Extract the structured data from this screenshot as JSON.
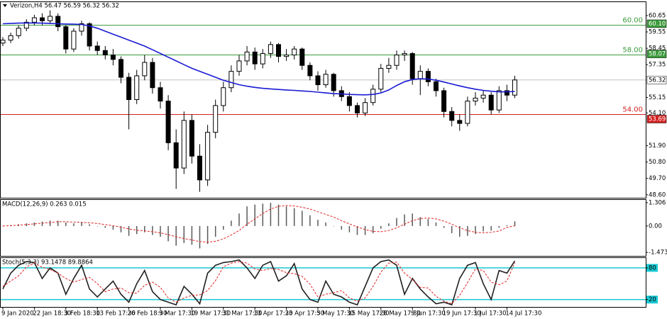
{
  "chart_data": [
    {
      "type": "candlestick",
      "title": "Verizon,H4 56.47 56.59 56.32 56.32",
      "categories": [
        "9 Jan 2020",
        null,
        null,
        null,
        "22 Jan 18:30",
        null,
        null,
        null,
        "3 Feb 18:30",
        null,
        null,
        null,
        "13 Feb 17:30",
        null,
        null,
        null,
        "26 Feb 18:30",
        null,
        null,
        null,
        "9 Mar 17:30",
        null,
        null,
        null,
        "19 Mar 17:30",
        null,
        null,
        null,
        "31 Mar 17:30",
        null,
        null,
        null,
        "13 Apr 17:30",
        null,
        null,
        null,
        "23 Apr 17:30",
        null,
        null,
        null,
        "5 May 17:30",
        null,
        null,
        null,
        "15 May 17:30",
        null,
        null,
        null,
        "28 May 17:30",
        null,
        null,
        null,
        "9 Jun 17:30",
        null,
        null,
        null,
        "19 Jun 17:30",
        null,
        null,
        null,
        "1 Jul 17:30",
        null,
        null,
        null,
        "14 Jul 17:30",
        null
      ],
      "open": [
        58.8,
        59.0,
        59.3,
        59.8,
        60.2,
        60.5,
        60.3,
        60.6,
        59.9,
        58.4,
        59.6,
        60.1,
        58.6,
        58.3,
        58.0,
        57.7,
        56.5,
        55.0,
        56.6,
        57.5,
        55.8,
        54.9,
        52.1,
        50.4,
        53.6,
        51.2,
        49.6,
        52.8,
        54.6,
        55.8,
        56.9,
        57.6,
        58.2,
        57.4,
        58.1,
        58.7,
        57.9,
        58.0,
        58.4,
        57.3,
        56.6,
        56.0,
        56.7,
        55.6,
        55.2,
        54.6,
        54.1,
        54.8,
        55.7,
        57.1,
        57.3,
        58.0,
        58.1,
        56.4,
        56.9,
        56.2,
        55.6,
        54.2,
        53.6,
        53.4,
        54.9,
        55.1,
        55.3,
        54.3,
        55.6,
        55.3
      ],
      "high": [
        59.2,
        59.5,
        60.0,
        60.4,
        60.7,
        60.8,
        61.0,
        60.8,
        60.0,
        59.8,
        60.3,
        60.2,
        58.9,
        58.6,
        58.4,
        57.9,
        56.8,
        57.0,
        58.0,
        57.8,
        56.2,
        55.3,
        53.0,
        54.2,
        54.0,
        52.0,
        53.3,
        55.0,
        56.2,
        57.3,
        58.0,
        58.6,
        58.5,
        58.4,
        58.9,
        58.8,
        58.4,
        58.6,
        58.5,
        57.5,
        56.9,
        57.0,
        56.8,
        55.9,
        55.5,
        54.8,
        55.1,
        56.0,
        57.4,
        57.8,
        58.3,
        58.3,
        58.2,
        57.3,
        57.1,
        56.4,
        55.8,
        54.5,
        54.0,
        55.2,
        55.5,
        55.6,
        55.5,
        55.9,
        56.0,
        56.6
      ],
      "low": [
        58.6,
        58.8,
        59.1,
        59.6,
        60.0,
        60.0,
        60.1,
        59.6,
        58.1,
        58.2,
        59.3,
        58.3,
        58.0,
        57.7,
        57.3,
        56.1,
        53.0,
        54.7,
        56.3,
        55.4,
        54.4,
        51.6,
        49.0,
        50.0,
        50.7,
        48.8,
        49.2,
        52.4,
        54.2,
        55.5,
        56.6,
        57.3,
        57.0,
        57.1,
        57.8,
        57.5,
        57.6,
        57.7,
        57.0,
        56.3,
        55.6,
        55.8,
        55.2,
        54.9,
        54.2,
        53.8,
        53.9,
        54.6,
        55.5,
        56.8,
        57.0,
        57.6,
        56.0,
        55.3,
        55.9,
        55.2,
        53.8,
        53.2,
        52.9,
        53.2,
        54.6,
        54.8,
        54.0,
        54.1,
        54.9,
        55.1
      ],
      "close": [
        59.0,
        59.3,
        59.8,
        60.2,
        60.5,
        60.3,
        60.6,
        59.9,
        58.4,
        59.6,
        60.1,
        58.6,
        58.3,
        58.0,
        57.7,
        56.5,
        55.0,
        56.6,
        57.5,
        55.8,
        54.9,
        52.1,
        50.4,
        53.6,
        51.2,
        49.6,
        52.8,
        54.6,
        55.8,
        56.9,
        57.6,
        58.2,
        57.4,
        58.1,
        58.7,
        57.9,
        58.0,
        58.4,
        57.3,
        56.6,
        56.0,
        56.7,
        55.6,
        55.2,
        54.6,
        54.1,
        54.8,
        55.7,
        57.1,
        57.3,
        58.0,
        58.1,
        56.4,
        56.9,
        56.2,
        55.6,
        54.2,
        53.6,
        53.4,
        54.9,
        55.1,
        55.3,
        54.3,
        55.6,
        55.3,
        56.32
      ],
      "candle_color": "#000000",
      "ma": {
        "color": "#1a1ad4",
        "values": [
          60.1,
          60.12,
          60.14,
          60.15,
          60.15,
          60.14,
          60.12,
          60.1,
          60.08,
          60.07,
          60.05,
          59.95,
          59.8,
          59.6,
          59.4,
          59.2,
          59.0,
          58.8,
          58.6,
          58.35,
          58.1,
          57.85,
          57.6,
          57.35,
          57.1,
          56.9,
          56.7,
          56.5,
          56.3,
          56.15,
          56.0,
          55.9,
          55.82,
          55.76,
          55.72,
          55.68,
          55.65,
          55.62,
          55.58,
          55.55,
          55.5,
          55.45,
          55.4,
          55.38,
          55.35,
          55.33,
          55.32,
          55.35,
          55.45,
          55.65,
          55.95,
          56.2,
          56.35,
          56.4,
          56.38,
          56.3,
          56.18,
          56.05,
          55.92,
          55.8,
          55.7,
          55.62,
          55.56,
          55.52,
          55.52,
          55.55
        ]
      },
      "ylim": [
        48.4,
        61.6
      ],
      "yticks": [
        60.65,
        59.55,
        58.45,
        57.35,
        55.15,
        {
          "value": 54.1,
          "label": "54.10"
        },
        {
          "value": 51.9,
          "label": "51.90"
        },
        {
          "value": 50.8,
          "label": "50.80"
        },
        {
          "value": 49.7,
          "label": "49.70"
        },
        {
          "value": 48.6,
          "label": "48.60"
        }
      ],
      "levels": [
        {
          "value": 60,
          "label": "60.00",
          "color": "#3a9a3a"
        },
        {
          "value": 58,
          "label": "58.00",
          "color": "#3a9a3a"
        },
        {
          "value": 54,
          "label": "54.00",
          "color": "#d42020"
        }
      ],
      "price_labels": [
        {
          "value": 60.1,
          "label": "60.10",
          "color": "#3a9a3a",
          "text_color": "#ffffff"
        },
        {
          "value": 58.07,
          "label": "58.07",
          "color": "#3a9a3a",
          "text_color": "#ffffff"
        },
        {
          "value": 56.32,
          "label": "56.32",
          "color": "#ffffff",
          "text_color": "#000000",
          "line_color": "#c0c0c0"
        },
        {
          "value": 53.69,
          "label": "53.69",
          "color": "#d42020",
          "text_color": "#ffffff"
        }
      ]
    },
    {
      "type": "macd",
      "title": "MACD(12,26,9) 0.263 0.015",
      "values": [
        0.0,
        0.05,
        0.1,
        0.15,
        0.2,
        0.25,
        0.3,
        0.3,
        0.2,
        0.15,
        0.2,
        0.1,
        0.0,
        -0.1,
        -0.2,
        -0.35,
        -0.55,
        -0.45,
        -0.35,
        -0.5,
        -0.6,
        -0.85,
        -1.1,
        -0.95,
        -1.05,
        -1.25,
        -1.0,
        -0.6,
        -0.2,
        0.3,
        0.7,
        1.1,
        1.2,
        1.25,
        1.3,
        1.2,
        1.1,
        1.0,
        0.85,
        0.6,
        0.35,
        0.2,
        0.0,
        -0.2,
        -0.35,
        -0.5,
        -0.5,
        -0.4,
        -0.15,
        0.15,
        0.45,
        0.65,
        0.7,
        0.5,
        0.4,
        0.2,
        -0.1,
        -0.4,
        -0.6,
        -0.55,
        -0.45,
        -0.3,
        -0.25,
        -0.1,
        0.05,
        0.263
      ],
      "color": "#5a5a5a",
      "signal": {
        "color": "#e02020",
        "values": [
          0.0,
          0.02,
          0.05,
          0.08,
          0.12,
          0.16,
          0.2,
          0.24,
          0.24,
          0.22,
          0.21,
          0.18,
          0.14,
          0.08,
          0.02,
          -0.06,
          -0.16,
          -0.23,
          -0.27,
          -0.32,
          -0.38,
          -0.48,
          -0.6,
          -0.7,
          -0.78,
          -0.87,
          -0.9,
          -0.85,
          -0.72,
          -0.5,
          -0.25,
          0.1,
          0.4,
          0.7,
          0.95,
          1.1,
          1.15,
          1.12,
          1.05,
          0.95,
          0.8,
          0.65,
          0.5,
          0.3,
          0.12,
          -0.05,
          -0.2,
          -0.3,
          -0.32,
          -0.25,
          -0.1,
          0.1,
          0.3,
          0.42,
          0.45,
          0.4,
          0.28,
          0.1,
          -0.1,
          -0.25,
          -0.35,
          -0.38,
          -0.35,
          -0.28,
          -0.08,
          0.015
        ]
      },
      "ylim": [
        -1.67,
        1.5
      ],
      "yticks": [
        1.306,
        {
          "value": 0,
          "label": "0.00"
        },
        -1.473
      ]
    },
    {
      "type": "stochastic",
      "title": "Stoch(5,3,3) 93.1478 89.8864",
      "series": [
        {
          "color": "#202020",
          "values": [
            40,
            70,
            85,
            92,
            90,
            60,
            80,
            70,
            30,
            60,
            85,
            40,
            25,
            40,
            55,
            30,
            15,
            50,
            75,
            35,
            20,
            15,
            10,
            45,
            30,
            12,
            70,
            85,
            90,
            92,
            95,
            80,
            60,
            85,
            92,
            55,
            65,
            88,
            40,
            20,
            15,
            55,
            30,
            25,
            15,
            10,
            45,
            80,
            92,
            95,
            85,
            30,
            60,
            40,
            25,
            12,
            15,
            10,
            60,
            85,
            90,
            50,
            20,
            75,
            70,
            93.1478
          ]
        },
        {
          "color": "#e02020",
          "values": [
            45,
            55,
            65,
            82,
            89,
            81,
            77,
            70,
            60,
            53,
            58,
            62,
            50,
            35,
            40,
            42,
            33,
            32,
            47,
            53,
            43,
            23,
            15,
            23,
            28,
            29,
            37,
            56,
            82,
            89,
            92,
            89,
            78,
            75,
            79,
            77,
            71,
            69,
            64,
            49,
            25,
            30,
            33,
            37,
            23,
            17,
            23,
            45,
            72,
            89,
            91,
            70,
            58,
            43,
            42,
            26,
            17,
            12,
            28,
            52,
            78,
            75,
            53,
            48,
            55,
            89.8864
          ]
        }
      ],
      "ylim": [
        6,
        100
      ],
      "yticks": [
        80,
        20
      ],
      "level_color": "#18c8d2"
    }
  ]
}
